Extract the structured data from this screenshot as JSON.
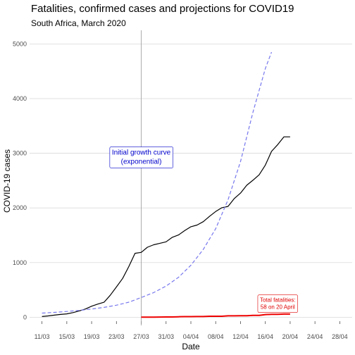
{
  "chart_data": {
    "type": "line",
    "title": "Fatalities, confirmed cases and projections for COVID19",
    "subtitle": "South Africa, March 2020",
    "xlabel": "Date",
    "ylabel": "COVID-19 cases",
    "xlim": [
      "2020-03-09",
      "2020-04-30"
    ],
    "ylim": [
      -150,
      5250
    ],
    "x_ticks": [
      {
        "date": "2020-03-11",
        "label": "11/03"
      },
      {
        "date": "2020-03-15",
        "label": "15/03"
      },
      {
        "date": "2020-03-19",
        "label": "19/03"
      },
      {
        "date": "2020-03-23",
        "label": "23/03"
      },
      {
        "date": "2020-03-27",
        "label": "27/03"
      },
      {
        "date": "2020-03-31",
        "label": "31/03"
      },
      {
        "date": "2020-04-04",
        "label": "04/04"
      },
      {
        "date": "2020-04-08",
        "label": "08/04"
      },
      {
        "date": "2020-04-12",
        "label": "12/04"
      },
      {
        "date": "2020-04-16",
        "label": "16/04"
      },
      {
        "date": "2020-04-20",
        "label": "20/04"
      },
      {
        "date": "2020-04-24",
        "label": "24/04"
      },
      {
        "date": "2020-04-28",
        "label": "28/04"
      }
    ],
    "y_ticks": [
      0,
      1000,
      2000,
      3000,
      4000,
      5000
    ],
    "grid": true,
    "series": [
      {
        "color": "#000000",
        "style": "solid",
        "x": [
          "2020-03-11",
          "2020-03-12",
          "2020-03-13",
          "2020-03-14",
          "2020-03-15",
          "2020-03-16",
          "2020-03-17",
          "2020-03-18",
          "2020-03-19",
          "2020-03-20",
          "2020-03-21",
          "2020-03-22",
          "2020-03-23",
          "2020-03-24",
          "2020-03-25",
          "2020-03-26",
          "2020-03-27",
          "2020-03-28",
          "2020-03-29",
          "2020-03-30",
          "2020-03-31",
          "2020-04-01",
          "2020-04-02",
          "2020-04-03",
          "2020-04-04",
          "2020-04-05",
          "2020-04-06",
          "2020-04-07",
          "2020-04-08",
          "2020-04-09",
          "2020-04-10",
          "2020-04-11",
          "2020-04-12",
          "2020-04-13",
          "2020-04-14",
          "2020-04-15",
          "2020-04-16",
          "2020-04-17",
          "2020-04-18",
          "2020-04-19",
          "2020-04-20"
        ],
        "y": [
          13,
          24,
          38,
          51,
          62,
          85,
          116,
          150,
          202,
          240,
          274,
          402,
          554,
          709,
          927,
          1170,
          1187,
          1280,
          1326,
          1353,
          1380,
          1462,
          1505,
          1585,
          1655,
          1686,
          1749,
          1845,
          1934,
          2003,
          2028,
          2173,
          2272,
          2415,
          2506,
          2605,
          2783,
          3034,
          3158,
          3300,
          3300
        ]
      },
      {
        "color": "#ee0000",
        "style": "solid",
        "x": [
          "2020-03-27",
          "2020-03-28",
          "2020-03-29",
          "2020-03-30",
          "2020-03-31",
          "2020-04-01",
          "2020-04-02",
          "2020-04-03",
          "2020-04-04",
          "2020-04-05",
          "2020-04-06",
          "2020-04-07",
          "2020-04-08",
          "2020-04-09",
          "2020-04-10",
          "2020-04-11",
          "2020-04-12",
          "2020-04-13",
          "2020-04-14",
          "2020-04-15",
          "2020-04-16",
          "2020-04-17",
          "2020-04-18",
          "2020-04-19",
          "2020-04-20"
        ],
        "y": [
          1,
          1,
          2,
          3,
          5,
          5,
          9,
          11,
          11,
          12,
          13,
          18,
          18,
          18,
          25,
          25,
          27,
          27,
          34,
          34,
          48,
          52,
          54,
          58,
          58
        ]
      },
      {
        "color": "#7777ee",
        "style": "dashed",
        "x": [
          "2020-03-11",
          "2020-03-13",
          "2020-03-15",
          "2020-03-17",
          "2020-03-19",
          "2020-03-21",
          "2020-03-23",
          "2020-03-25",
          "2020-03-27",
          "2020-03-29",
          "2020-03-31",
          "2020-04-02",
          "2020-04-04",
          "2020-04-06",
          "2020-04-08",
          "2020-04-10",
          "2020-04-12",
          "2020-04-14",
          "2020-04-16",
          "2020-04-17"
        ],
        "y": [
          75,
          88,
          105,
          125,
          150,
          180,
          220,
          275,
          360,
          450,
          570,
          730,
          950,
          1240,
          1620,
          2150,
          2850,
          3750,
          4550,
          4850
        ]
      }
    ],
    "vline": {
      "date": "2020-03-27",
      "color": "#999999"
    },
    "annotations": [
      {
        "lines": [
          "Initial growth curve",
          "(exponential)"
        ],
        "date": "2020-03-27",
        "y": 2950,
        "color": "#0000cc"
      },
      {
        "lines": [
          "Total fatalities:",
          "58 on 20 April"
        ],
        "date": "2020-04-18",
        "y": 260,
        "color": "#e00000"
      }
    ]
  }
}
